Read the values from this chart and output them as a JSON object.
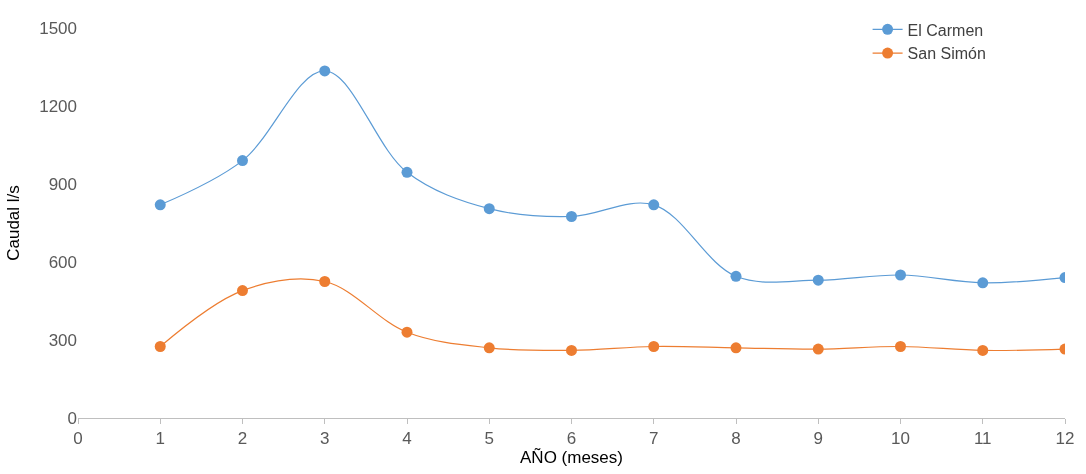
{
  "chart_data": {
    "type": "line",
    "xlabel": "AÑO (meses)",
    "ylabel": "Caudal l/s",
    "x": [
      1,
      2,
      3,
      4,
      5,
      6,
      7,
      8,
      9,
      10,
      11,
      12
    ],
    "series": [
      {
        "name": "El Carmen",
        "color": "#5b9bd5",
        "values": [
          820,
          990,
          1335,
          945,
          805,
          775,
          820,
          545,
          530,
          550,
          520,
          540
        ]
      },
      {
        "name": "San Simón",
        "color": "#ed7d31",
        "values": [
          275,
          490,
          525,
          330,
          270,
          260,
          275,
          270,
          265,
          275,
          260,
          265
        ]
      }
    ],
    "xlim": [
      0,
      12
    ],
    "xticks": [
      0,
      1,
      2,
      3,
      4,
      5,
      6,
      7,
      8,
      9,
      10,
      11,
      12
    ],
    "ylim": [
      0,
      1500
    ],
    "yticks": [
      0,
      300,
      600,
      900,
      1200,
      1500
    ],
    "legend": "top right",
    "marker": "circle",
    "line_style": "solid"
  }
}
